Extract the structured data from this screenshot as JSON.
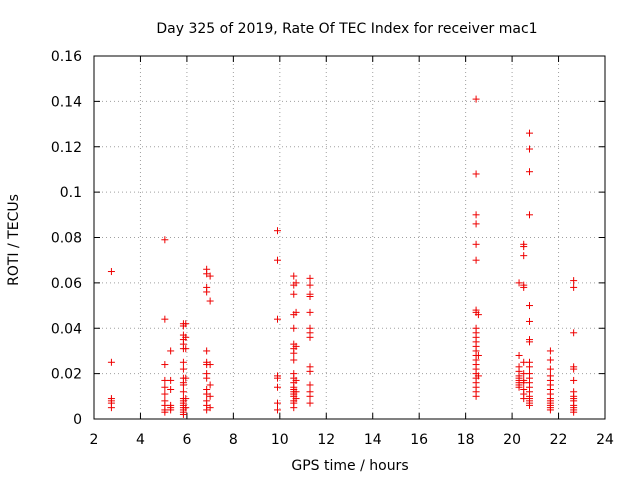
{
  "chart_data": {
    "type": "scatter",
    "title": "Day 325 of 2019, Rate Of TEC Index for receiver mac1",
    "xlabel": "GPS time / hours",
    "ylabel": "ROTI / TECUs",
    "xlim": [
      2,
      24
    ],
    "ylim": [
      0,
      0.16
    ],
    "xticks": [
      2,
      4,
      6,
      8,
      10,
      12,
      14,
      16,
      18,
      20,
      22,
      24
    ],
    "xtick_labels": [
      "2",
      "4",
      "6",
      "8",
      "10",
      "12",
      "14",
      "16",
      "18",
      "20",
      "22",
      "24"
    ],
    "yticks": [
      0,
      0.02,
      0.04,
      0.06,
      0.08,
      0.1,
      0.12,
      0.14,
      0.16
    ],
    "ytick_labels": [
      "0",
      "0.02",
      "0.04",
      "0.06",
      "0.08",
      "0.1",
      "0.12",
      "0.14",
      "0.16"
    ],
    "grid": true,
    "marker": "+",
    "marker_color": "#ee0000",
    "series": [
      {
        "name": "ROTI",
        "points": [
          [
            2.75,
            0.065
          ],
          [
            2.75,
            0.025
          ],
          [
            2.75,
            0.009
          ],
          [
            2.75,
            0.008
          ],
          [
            2.75,
            0.007
          ],
          [
            2.75,
            0.005
          ],
          [
            5.05,
            0.079
          ],
          [
            5.05,
            0.044
          ],
          [
            5.05,
            0.024
          ],
          [
            5.05,
            0.017
          ],
          [
            5.05,
            0.014
          ],
          [
            5.05,
            0.011
          ],
          [
            5.05,
            0.008
          ],
          [
            5.05,
            0.006
          ],
          [
            5.05,
            0.004
          ],
          [
            5.05,
            0.003
          ],
          [
            5.3,
            0.03
          ],
          [
            5.3,
            0.017
          ],
          [
            5.3,
            0.013
          ],
          [
            5.3,
            0.006
          ],
          [
            5.3,
            0.005
          ],
          [
            5.3,
            0.004
          ],
          [
            5.85,
            0.042
          ],
          [
            5.85,
            0.041
          ],
          [
            5.85,
            0.037
          ],
          [
            5.85,
            0.035
          ],
          [
            5.85,
            0.033
          ],
          [
            5.85,
            0.031
          ],
          [
            5.85,
            0.025
          ],
          [
            5.85,
            0.022
          ],
          [
            5.85,
            0.018
          ],
          [
            5.85,
            0.016
          ],
          [
            5.85,
            0.015
          ],
          [
            5.85,
            0.012
          ],
          [
            5.85,
            0.009
          ],
          [
            5.85,
            0.008
          ],
          [
            5.85,
            0.007
          ],
          [
            5.85,
            0.006
          ],
          [
            5.85,
            0.005
          ],
          [
            5.85,
            0.004
          ],
          [
            5.85,
            0.003
          ],
          [
            5.85,
            0.002
          ],
          [
            5.95,
            0.042
          ],
          [
            5.95,
            0.036
          ],
          [
            5.95,
            0.031
          ],
          [
            5.95,
            0.018
          ],
          [
            5.95,
            0.009
          ],
          [
            5.95,
            0.005
          ],
          [
            6.85,
            0.066
          ],
          [
            6.85,
            0.064
          ],
          [
            6.85,
            0.058
          ],
          [
            6.85,
            0.056
          ],
          [
            6.85,
            0.03
          ],
          [
            6.85,
            0.025
          ],
          [
            6.85,
            0.024
          ],
          [
            6.85,
            0.02
          ],
          [
            6.85,
            0.018
          ],
          [
            6.85,
            0.013
          ],
          [
            6.85,
            0.011
          ],
          [
            6.85,
            0.008
          ],
          [
            6.85,
            0.006
          ],
          [
            6.85,
            0.004
          ],
          [
            7.0,
            0.063
          ],
          [
            7.0,
            0.052
          ],
          [
            7.0,
            0.024
          ],
          [
            7.0,
            0.015
          ],
          [
            7.0,
            0.01
          ],
          [
            7.0,
            0.005
          ],
          [
            9.9,
            0.083
          ],
          [
            9.9,
            0.07
          ],
          [
            9.9,
            0.044
          ],
          [
            9.9,
            0.019
          ],
          [
            9.9,
            0.018
          ],
          [
            9.9,
            0.014
          ],
          [
            9.9,
            0.007
          ],
          [
            9.9,
            0.004
          ],
          [
            10.6,
            0.063
          ],
          [
            10.6,
            0.059
          ],
          [
            10.6,
            0.055
          ],
          [
            10.6,
            0.046
          ],
          [
            10.6,
            0.04
          ],
          [
            10.6,
            0.033
          ],
          [
            10.6,
            0.031
          ],
          [
            10.6,
            0.029
          ],
          [
            10.6,
            0.026
          ],
          [
            10.6,
            0.02
          ],
          [
            10.6,
            0.018
          ],
          [
            10.6,
            0.016
          ],
          [
            10.6,
            0.014
          ],
          [
            10.6,
            0.013
          ],
          [
            10.6,
            0.012
          ],
          [
            10.6,
            0.011
          ],
          [
            10.6,
            0.01
          ],
          [
            10.6,
            0.008
          ],
          [
            10.6,
            0.007
          ],
          [
            10.6,
            0.005
          ],
          [
            10.7,
            0.06
          ],
          [
            10.7,
            0.047
          ],
          [
            10.7,
            0.032
          ],
          [
            10.7,
            0.017
          ],
          [
            10.7,
            0.012
          ],
          [
            10.7,
            0.009
          ],
          [
            11.3,
            0.062
          ],
          [
            11.3,
            0.059
          ],
          [
            11.3,
            0.055
          ],
          [
            11.3,
            0.054
          ],
          [
            11.3,
            0.047
          ],
          [
            11.3,
            0.04
          ],
          [
            11.3,
            0.038
          ],
          [
            11.3,
            0.036
          ],
          [
            11.3,
            0.023
          ],
          [
            11.3,
            0.021
          ],
          [
            11.3,
            0.015
          ],
          [
            11.3,
            0.012
          ],
          [
            11.3,
            0.01
          ],
          [
            11.3,
            0.007
          ],
          [
            18.45,
            0.141
          ],
          [
            18.45,
            0.108
          ],
          [
            18.45,
            0.09
          ],
          [
            18.45,
            0.086
          ],
          [
            18.45,
            0.077
          ],
          [
            18.45,
            0.07
          ],
          [
            18.45,
            0.048
          ],
          [
            18.45,
            0.047
          ],
          [
            18.45,
            0.04
          ],
          [
            18.45,
            0.038
          ],
          [
            18.45,
            0.036
          ],
          [
            18.45,
            0.034
          ],
          [
            18.45,
            0.032
          ],
          [
            18.45,
            0.03
          ],
          [
            18.45,
            0.028
          ],
          [
            18.45,
            0.026
          ],
          [
            18.45,
            0.024
          ],
          [
            18.45,
            0.022
          ],
          [
            18.45,
            0.02
          ],
          [
            18.45,
            0.018
          ],
          [
            18.45,
            0.016
          ],
          [
            18.45,
            0.014
          ],
          [
            18.45,
            0.012
          ],
          [
            18.45,
            0.01
          ],
          [
            18.55,
            0.046
          ],
          [
            18.55,
            0.028
          ],
          [
            18.55,
            0.019
          ],
          [
            20.3,
            0.06
          ],
          [
            20.3,
            0.028
          ],
          [
            20.3,
            0.023
          ],
          [
            20.3,
            0.021
          ],
          [
            20.3,
            0.019
          ],
          [
            20.3,
            0.018
          ],
          [
            20.3,
            0.017
          ],
          [
            20.3,
            0.016
          ],
          [
            20.3,
            0.015
          ],
          [
            20.3,
            0.014
          ],
          [
            20.5,
            0.077
          ],
          [
            20.5,
            0.076
          ],
          [
            20.5,
            0.072
          ],
          [
            20.5,
            0.059
          ],
          [
            20.5,
            0.058
          ],
          [
            20.5,
            0.025
          ],
          [
            20.5,
            0.02
          ],
          [
            20.5,
            0.017
          ],
          [
            20.5,
            0.016
          ],
          [
            20.5,
            0.013
          ],
          [
            20.5,
            0.011
          ],
          [
            20.5,
            0.009
          ],
          [
            20.75,
            0.126
          ],
          [
            20.75,
            0.119
          ],
          [
            20.75,
            0.109
          ],
          [
            20.75,
            0.09
          ],
          [
            20.75,
            0.05
          ],
          [
            20.75,
            0.043
          ],
          [
            20.75,
            0.035
          ],
          [
            20.75,
            0.034
          ],
          [
            20.75,
            0.025
          ],
          [
            20.75,
            0.023
          ],
          [
            20.75,
            0.02
          ],
          [
            20.75,
            0.018
          ],
          [
            20.75,
            0.016
          ],
          [
            20.75,
            0.014
          ],
          [
            20.75,
            0.012
          ],
          [
            20.75,
            0.01
          ],
          [
            20.75,
            0.009
          ],
          [
            20.75,
            0.008
          ],
          [
            20.75,
            0.007
          ],
          [
            20.75,
            0.006
          ],
          [
            21.65,
            0.03
          ],
          [
            21.65,
            0.026
          ],
          [
            21.65,
            0.022
          ],
          [
            21.65,
            0.019
          ],
          [
            21.65,
            0.017
          ],
          [
            21.65,
            0.015
          ],
          [
            21.65,
            0.013
          ],
          [
            21.65,
            0.011
          ],
          [
            21.65,
            0.009
          ],
          [
            21.65,
            0.008
          ],
          [
            21.65,
            0.007
          ],
          [
            21.65,
            0.006
          ],
          [
            21.65,
            0.005
          ],
          [
            21.65,
            0.004
          ],
          [
            22.65,
            0.061
          ],
          [
            22.65,
            0.058
          ],
          [
            22.65,
            0.038
          ],
          [
            22.65,
            0.023
          ],
          [
            22.65,
            0.022
          ],
          [
            22.65,
            0.017
          ],
          [
            22.65,
            0.012
          ],
          [
            22.65,
            0.01
          ],
          [
            22.65,
            0.009
          ],
          [
            22.65,
            0.008
          ],
          [
            22.65,
            0.006
          ],
          [
            22.65,
            0.005
          ],
          [
            22.65,
            0.004
          ],
          [
            22.65,
            0.003
          ]
        ]
      }
    ]
  }
}
